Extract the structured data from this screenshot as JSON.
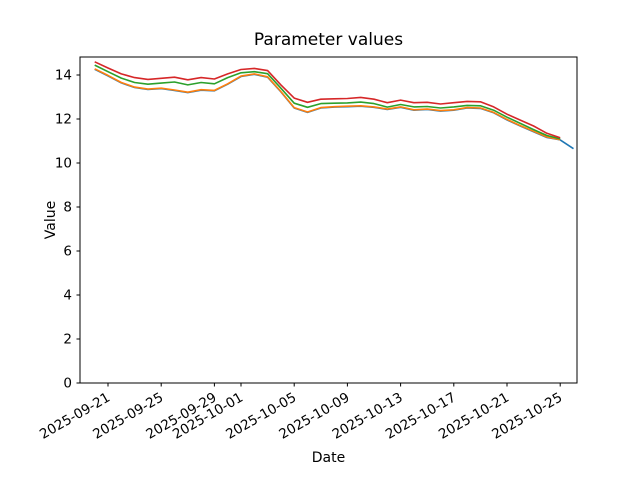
{
  "chart_data": {
    "type": "line",
    "title": "Parameter values",
    "xlabel": "Date",
    "ylabel": "Value",
    "grid": false,
    "legend_position": "none",
    "ylim": [
      0,
      14.8
    ],
    "y_ticks": [
      0,
      2,
      4,
      6,
      8,
      10,
      12,
      14
    ],
    "y_tick_labels": [
      "0",
      "2",
      "4",
      "6",
      "8",
      "10",
      "12",
      "14"
    ],
    "x_tick_labels": [
      "2025-09-21",
      "2025-09-25",
      "2025-09-29",
      "2025-10-01",
      "2025-10-05",
      "2025-10-09",
      "2025-10-13",
      "2025-10-17",
      "2025-10-21",
      "2025-10-25"
    ],
    "dates": [
      "2025-09-20",
      "2025-09-21",
      "2025-09-22",
      "2025-09-23",
      "2025-09-24",
      "2025-09-25",
      "2025-09-26",
      "2025-09-27",
      "2025-09-28",
      "2025-09-29",
      "2025-09-30",
      "2025-10-01",
      "2025-10-02",
      "2025-10-03",
      "2025-10-04",
      "2025-10-05",
      "2025-10-06",
      "2025-10-07",
      "2025-10-08",
      "2025-10-09",
      "2025-10-10",
      "2025-10-11",
      "2025-10-12",
      "2025-10-13",
      "2025-10-14",
      "2025-10-15",
      "2025-10-16",
      "2025-10-17",
      "2025-10-18",
      "2025-10-19",
      "2025-10-20",
      "2025-10-21",
      "2025-10-22",
      "2025-10-23",
      "2025-10-24",
      "2025-10-25",
      "2025-10-26"
    ],
    "series": [
      {
        "name": "blue",
        "color": "#1f77b4",
        "values": [
          14.26,
          13.96,
          13.64,
          13.43,
          13.34,
          13.38,
          13.3,
          13.2,
          13.31,
          13.28,
          13.58,
          13.93,
          14.03,
          13.9,
          13.23,
          12.5,
          12.3,
          12.5,
          12.54,
          12.56,
          12.58,
          12.53,
          12.43,
          12.53,
          12.4,
          12.43,
          12.36,
          12.4,
          12.5,
          12.48,
          12.28,
          11.96,
          11.68,
          11.42,
          11.16,
          11.05,
          10.65
        ]
      },
      {
        "name": "orange",
        "color": "#ff7f0e",
        "values": [
          14.28,
          13.98,
          13.66,
          13.45,
          13.36,
          13.4,
          13.32,
          13.22,
          13.33,
          13.3,
          13.6,
          13.95,
          14.05,
          13.92,
          13.25,
          12.52,
          12.32,
          12.52,
          12.56,
          12.58,
          12.6,
          12.55,
          12.45,
          12.55,
          12.42,
          12.45,
          12.38,
          12.42,
          12.52,
          12.5,
          12.3,
          11.98,
          11.7,
          11.44,
          11.18,
          11.06,
          null
        ]
      },
      {
        "name": "green",
        "color": "#2ca02c",
        "values": [
          14.45,
          14.15,
          13.86,
          13.66,
          13.58,
          13.63,
          13.68,
          13.55,
          13.66,
          13.6,
          13.88,
          14.1,
          14.15,
          14.06,
          13.4,
          12.72,
          12.53,
          12.7,
          12.72,
          12.73,
          12.77,
          12.7,
          12.54,
          12.66,
          12.55,
          12.57,
          12.5,
          12.55,
          12.62,
          12.6,
          12.4,
          12.08,
          11.8,
          11.52,
          11.25,
          11.1,
          null
        ]
      },
      {
        "name": "red",
        "color": "#d62728",
        "values": [
          14.6,
          14.32,
          14.05,
          13.88,
          13.8,
          13.85,
          13.9,
          13.78,
          13.88,
          13.82,
          14.05,
          14.25,
          14.3,
          14.2,
          13.55,
          12.95,
          12.76,
          12.9,
          12.92,
          12.93,
          12.98,
          12.9,
          12.74,
          12.86,
          12.74,
          12.76,
          12.68,
          12.74,
          12.8,
          12.78,
          12.55,
          12.22,
          11.95,
          11.68,
          11.35,
          11.15,
          null
        ]
      }
    ]
  }
}
